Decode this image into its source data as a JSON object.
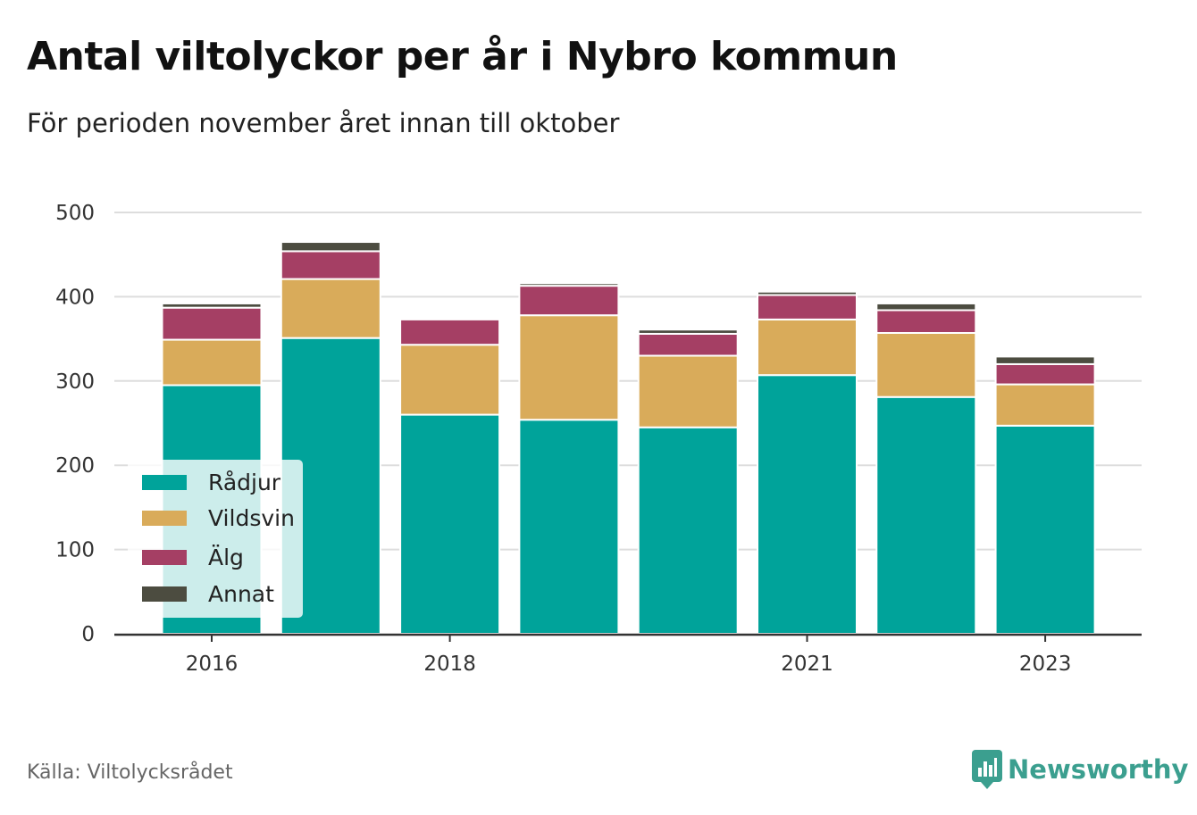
{
  "title": "Antal viltolyckor per år i Nybro kommun",
  "subtitle": "För perioden november året innan till oktober",
  "source": "Källa: Viltolycksrådet",
  "brand": {
    "name": "Newsworthy",
    "icon": "newsworthy-logo-icon",
    "color": "#3b9f8f"
  },
  "chart_data": {
    "type": "bar",
    "stacked": true,
    "categories": [
      2016,
      2017,
      2018,
      2019,
      2020,
      2021,
      2022,
      2023
    ],
    "x_tick_labels": [
      "2016",
      "2018",
      "2021",
      "2023"
    ],
    "ylim": [
      0,
      500
    ],
    "y_ticks": [
      0,
      100,
      200,
      300,
      400,
      500
    ],
    "grid": true,
    "legend_position": "bottom-left",
    "series": [
      {
        "name": "Rådjur",
        "color": "#00a39a",
        "values": [
          295,
          351,
          260,
          254,
          245,
          307,
          281,
          247
        ]
      },
      {
        "name": "Vildsvin",
        "color": "#d9ab5a",
        "values": [
          54,
          70,
          83,
          124,
          85,
          66,
          76,
          49
        ]
      },
      {
        "name": "Älg",
        "color": "#a53f64",
        "values": [
          38,
          33,
          30,
          35,
          26,
          29,
          27,
          24
        ]
      },
      {
        "name": "Annat",
        "color": "#4c4c40",
        "values": [
          5,
          11,
          0,
          3,
          5,
          4,
          8,
          9
        ]
      }
    ]
  }
}
